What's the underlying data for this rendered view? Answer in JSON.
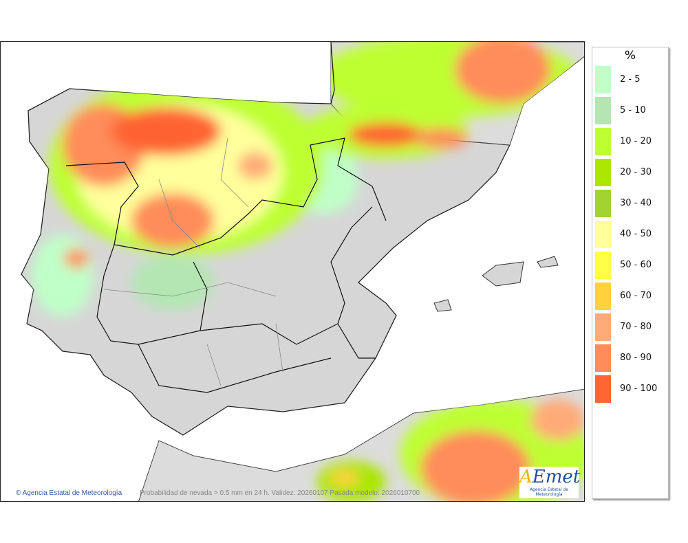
{
  "map": {
    "credit": "Agencia Estatal de Meteorología",
    "description": "Probabilidad de nevada > 0.5 mm en 24 h. Validez: 20260107 Pasada modelo: 2026010700",
    "logo_text": "AEMet",
    "logo_subtitle": "Agencia Estatal de Meteorología"
  },
  "legend": {
    "title": "%",
    "items": [
      {
        "label": "2 - 5",
        "color": "#bfffc8"
      },
      {
        "label": "5 - 10",
        "color": "#b4e6b4"
      },
      {
        "label": "10 - 20",
        "color": "#beff32"
      },
      {
        "label": "20 - 30",
        "color": "#aae600"
      },
      {
        "label": "30 - 40",
        "color": "#a0d232"
      },
      {
        "label": "40 - 50",
        "color": "#ffff9b"
      },
      {
        "label": "50 - 60",
        "color": "#ffff46"
      },
      {
        "label": "60 - 70",
        "color": "#ffd23c"
      },
      {
        "label": "70 - 80",
        "color": "#ffaa78"
      },
      {
        "label": "80 - 90",
        "color": "#ff8c5a"
      },
      {
        "label": "90 - 100",
        "color": "#ff6432"
      }
    ]
  }
}
